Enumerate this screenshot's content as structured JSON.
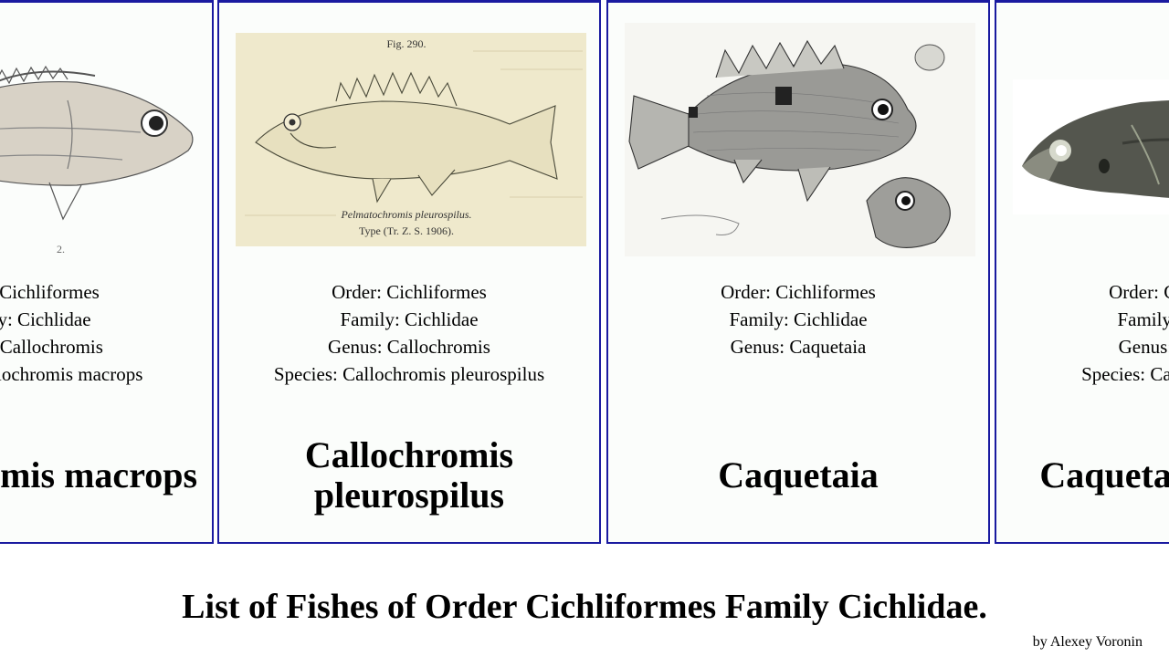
{
  "cards": [
    {
      "image": "fish-engraving",
      "order": "Order: Cichliformes",
      "family": "Family: Cichlidae",
      "genus": "Genus: Callochromis",
      "species": "Species: Callochromis macrops",
      "name": "Callochromis macrops",
      "plate_caption": "2."
    },
    {
      "image": "fish-engraving",
      "order": "Order: Cichliformes",
      "family": "Family: Cichlidae",
      "genus": "Genus: Callochromis",
      "species": "Species: Callochromis pleurospilus",
      "name_line1": "Callochromis",
      "name_line2": "pleurospilus",
      "plate_fig": "Fig. 290.",
      "plate_caption": "Pelmatochromis pleurospilus.",
      "plate_type": "Type (Tr. Z. S. 1906)."
    },
    {
      "image": "fish-engraving",
      "order": "Order: Cichliformes",
      "family": "Family: Cichlidae",
      "genus": "Genus: Caquetaia",
      "name": "Caquetaia"
    },
    {
      "image": "fish-photo",
      "order": "Order: Cichliformes",
      "family": "Family: Cichlidae",
      "genus": "Genus: Caquetaia",
      "species": "Species: Caquetaia kraussii",
      "name": "Caquetaia kraussii"
    }
  ],
  "footer": {
    "title": "List of Fishes of Order Cichliformes Family Cichlidae.",
    "credit": "by Alexey Voronin"
  },
  "colors": {
    "card_border": "#1a1aa0",
    "plate_paper": "#efe9cc"
  }
}
